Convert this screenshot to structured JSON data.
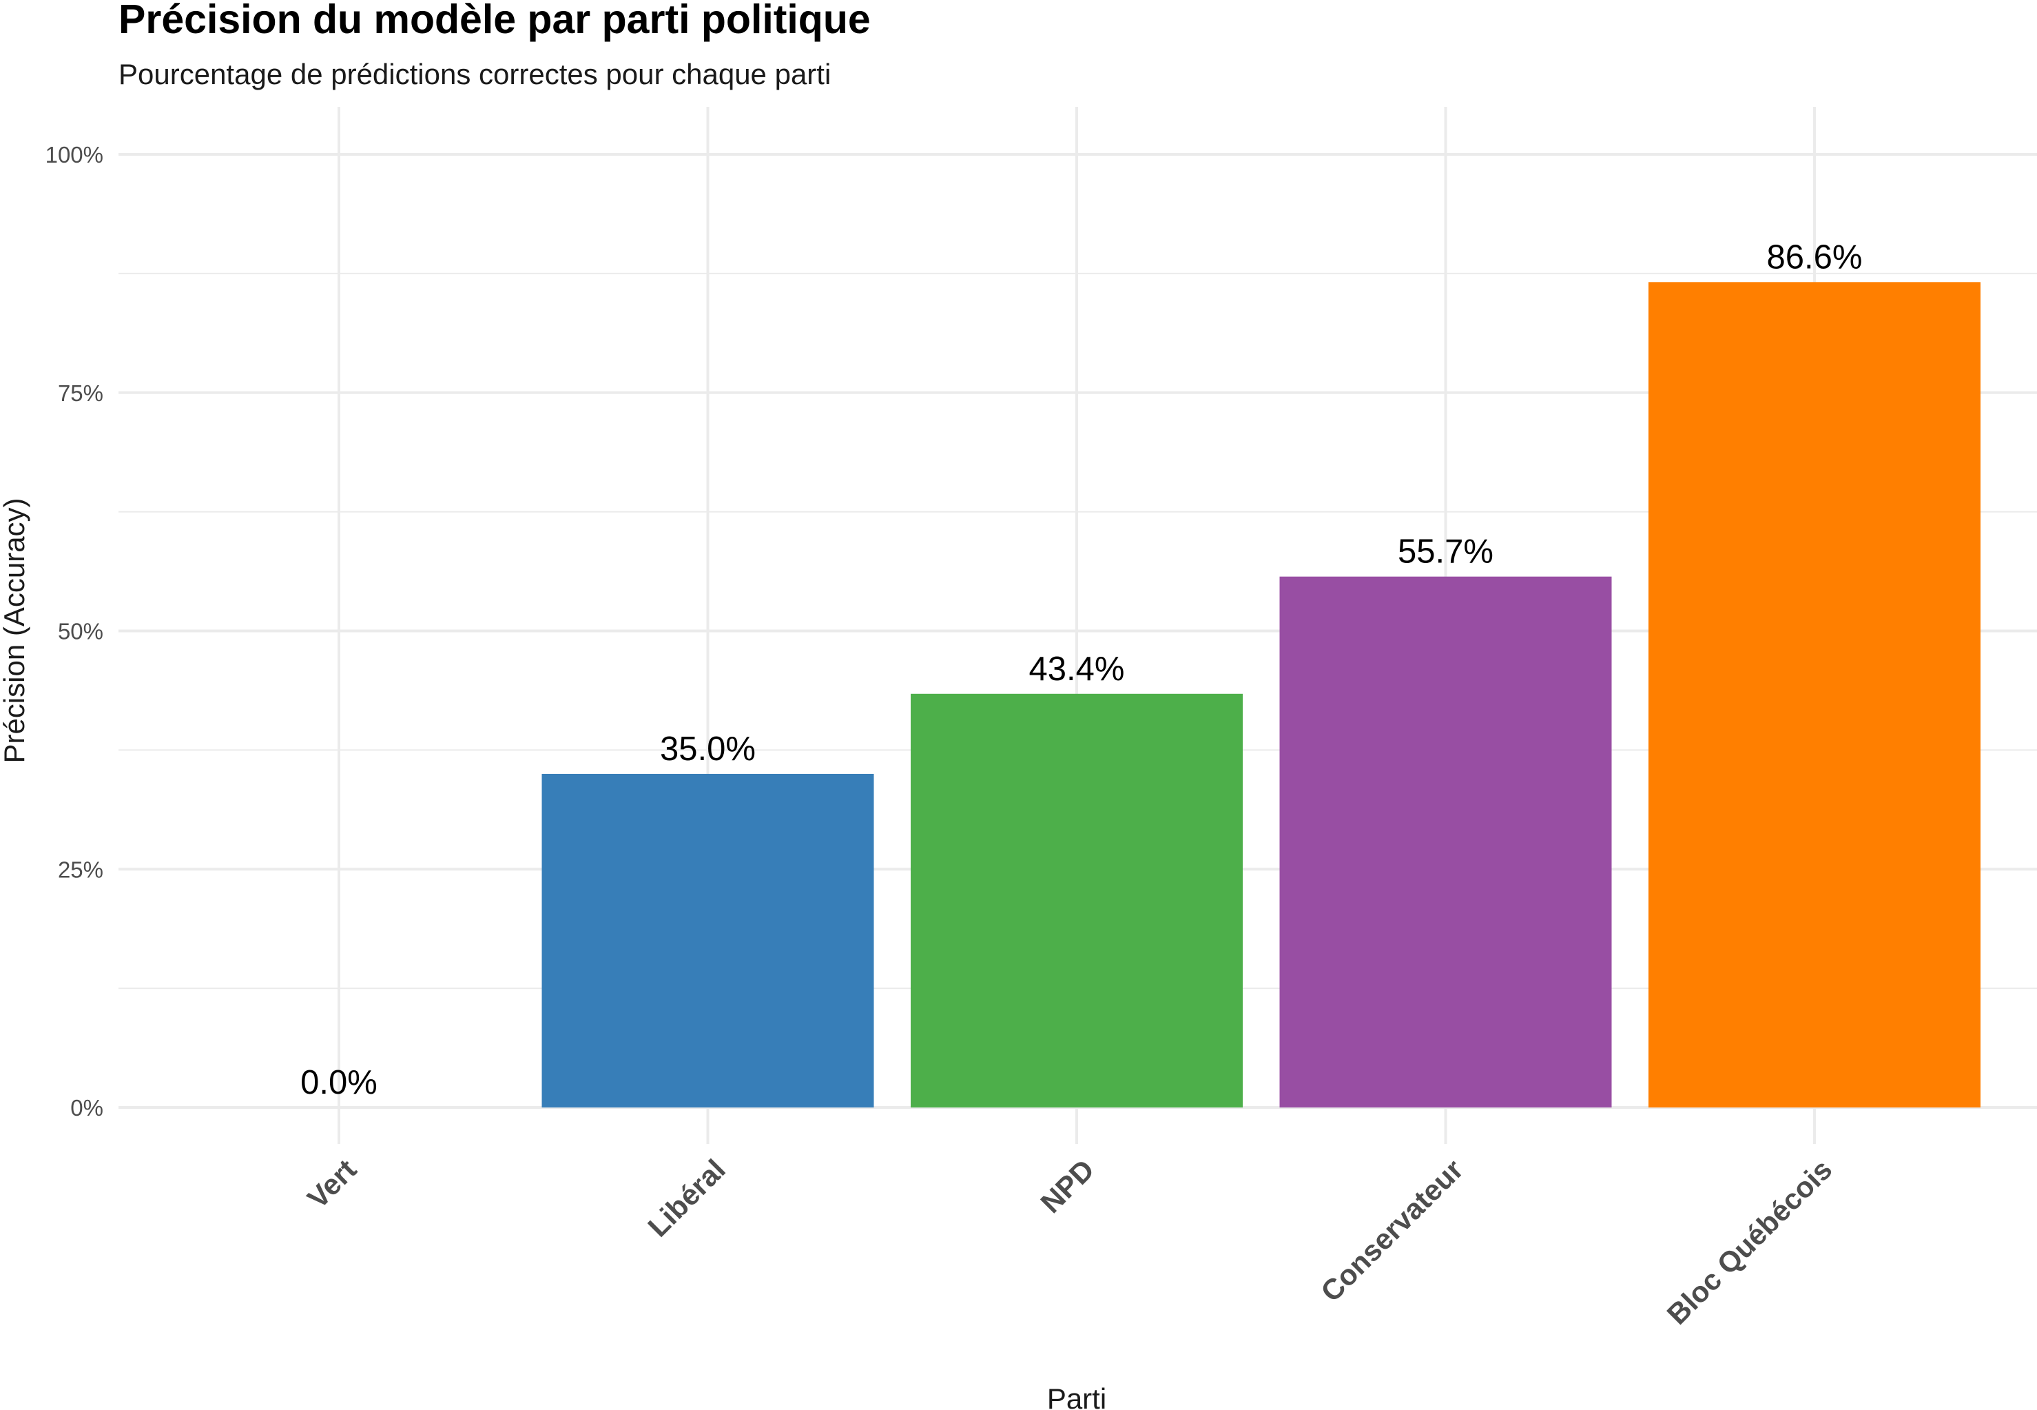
{
  "chart_data": {
    "type": "bar",
    "title": "Précision du modèle par parti politique",
    "subtitle": "Pourcentage de prédictions correctes pour chaque parti",
    "xlabel": "Parti",
    "ylabel": "Précision (Accuracy)",
    "categories": [
      "Vert",
      "Libéral",
      "NPD",
      "Conservateur",
      "Bloc Québécois"
    ],
    "values": [
      0.0,
      35.0,
      43.4,
      55.7,
      86.6
    ],
    "value_labels": [
      "0.0%",
      "35.0%",
      "43.4%",
      "55.7%",
      "86.6%"
    ],
    "colors": [
      "#4DAF4A",
      "#377EB8",
      "#4DAF4A",
      "#984EA3",
      "#FF7F00"
    ],
    "ylim": [
      0,
      100
    ],
    "yticks": [
      0,
      25,
      50,
      75,
      100
    ],
    "ytick_labels": [
      "0%",
      "25%",
      "50%",
      "75%",
      "100%"
    ],
    "grid": true,
    "legend": "none"
  }
}
